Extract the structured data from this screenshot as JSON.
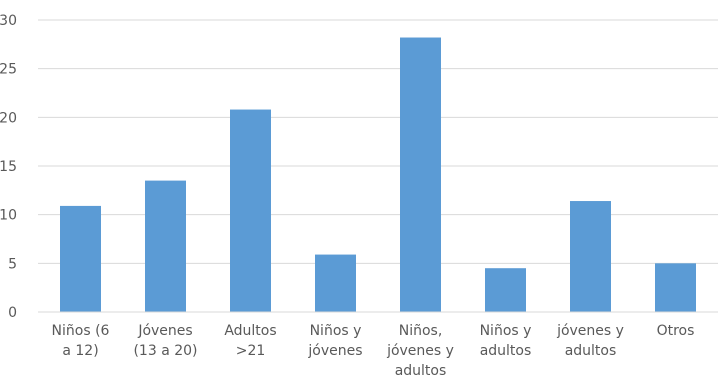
{
  "chart_data": {
    "type": "bar",
    "categories": [
      [
        "Niños (6",
        "a 12)"
      ],
      [
        "Jóvenes",
        "(13 a 20)"
      ],
      [
        "Adultos",
        ">21"
      ],
      [
        "Niños y",
        "jóvenes"
      ],
      [
        "Niños,",
        "jóvenes y",
        "adultos"
      ],
      [
        "Niños y",
        "adultos"
      ],
      [
        "jóvenes y",
        "adultos"
      ],
      [
        "Otros"
      ]
    ],
    "values": [
      10.9,
      13.5,
      20.8,
      5.9,
      28.2,
      4.5,
      11.4,
      5.0
    ],
    "ylim": [
      0,
      30
    ],
    "yticks": [
      0,
      5,
      10,
      15,
      20,
      25,
      30
    ],
    "grid": true,
    "legend": "none",
    "bar_color": "#5b9bd5",
    "grid_color": "#d9d9d9",
    "text_color": "#595959"
  }
}
